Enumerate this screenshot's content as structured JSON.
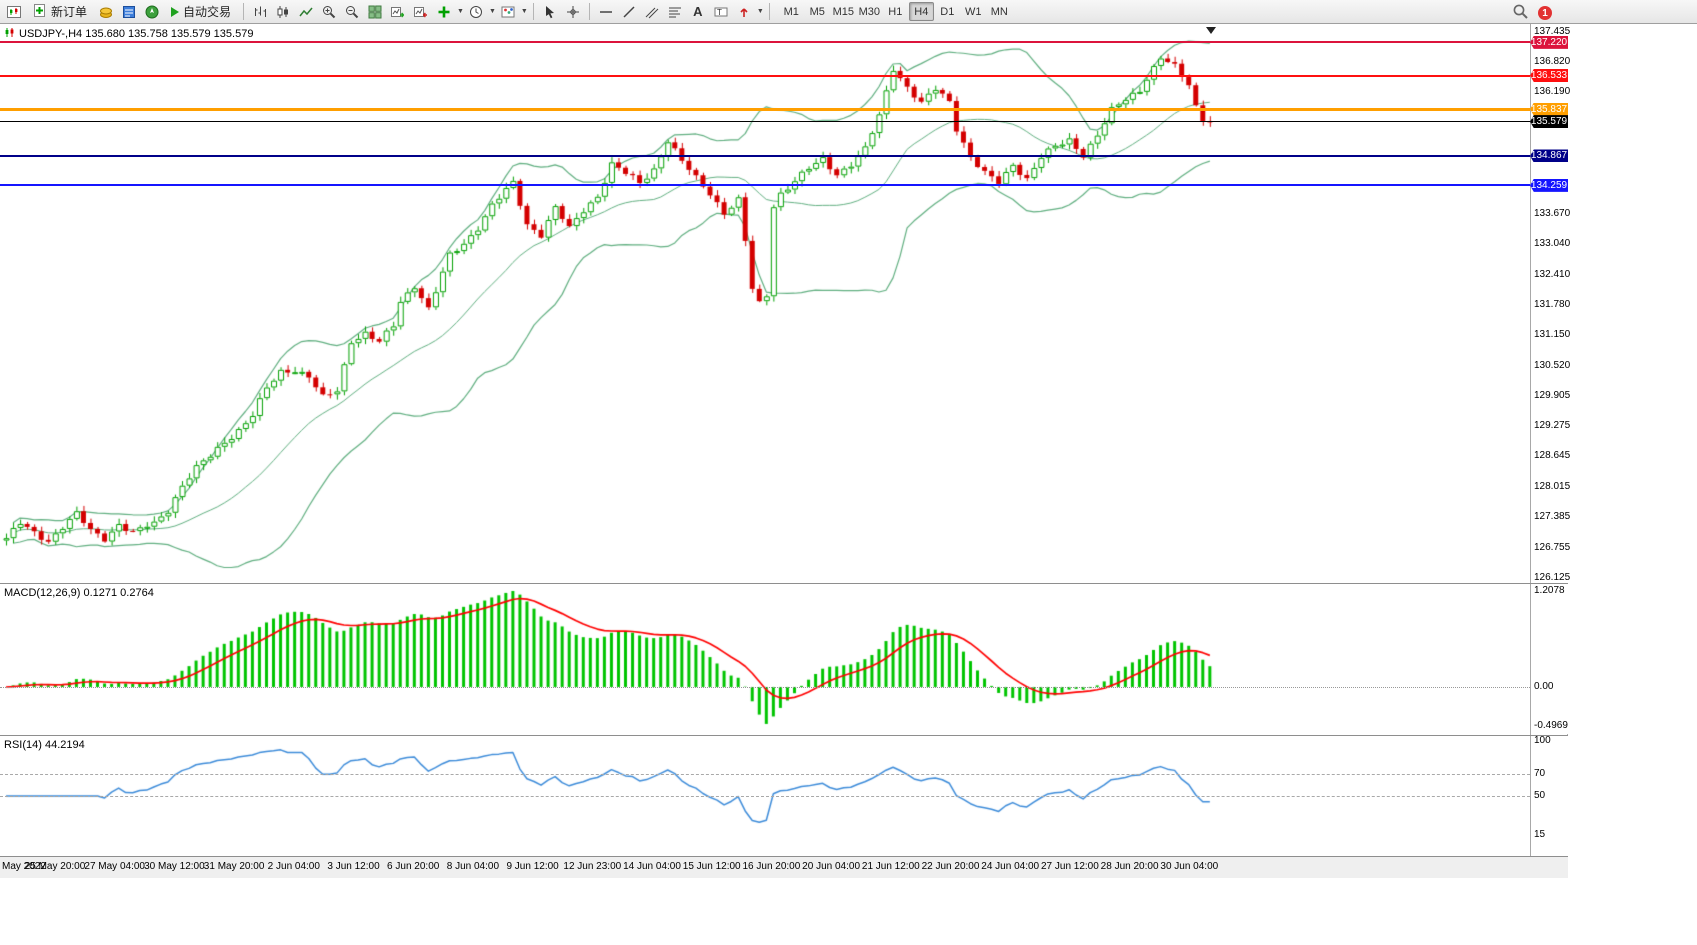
{
  "toolbar": {
    "new_order_label": "新订单",
    "auto_trading_label": "自动交易",
    "timeframes": [
      "M1",
      "M5",
      "M15",
      "M30",
      "H1",
      "H4",
      "D1",
      "W1",
      "MN"
    ],
    "active_timeframe": "H4",
    "notification_count": "1"
  },
  "chart": {
    "info_line": "USDJPY-,H4 135.680 135.758 135.579 135.579",
    "symbol": "USDJPY-",
    "period": "H4",
    "open": "135.680",
    "high": "135.758",
    "low": "135.579",
    "close": "135.579",
    "price_axis": {
      "ticks": [
        {
          "label": "137.435",
          "price": 137.435
        },
        {
          "label": "136.820",
          "price": 136.82
        },
        {
          "label": "136.190",
          "price": 136.19
        },
        {
          "label": "133.670",
          "price": 133.67
        },
        {
          "label": "133.040",
          "price": 133.04
        },
        {
          "label": "132.410",
          "price": 132.41
        },
        {
          "label": "131.780",
          "price": 131.78
        },
        {
          "label": "131.150",
          "price": 131.15
        },
        {
          "label": "130.520",
          "price": 130.52
        },
        {
          "label": "129.905",
          "price": 129.905
        },
        {
          "label": "129.275",
          "price": 129.275
        },
        {
          "label": "128.645",
          "price": 128.645
        },
        {
          "label": "128.015",
          "price": 128.015
        },
        {
          "label": "127.385",
          "price": 127.385
        },
        {
          "label": "126.755",
          "price": 126.755
        },
        {
          "label": "126.125",
          "price": 126.125
        }
      ]
    },
    "levels": [
      {
        "label": "137.220",
        "price": 137.22,
        "color": "#dc143c",
        "thickness": 2
      },
      {
        "label": "136.533",
        "price": 136.533,
        "color": "#ff1010",
        "thickness": 2
      },
      {
        "label": "135.837",
        "price": 135.837,
        "color": "#ff9f00",
        "thickness": 3
      },
      {
        "label": "135.579",
        "price": 135.579,
        "color": "#000000",
        "thickness": 1,
        "current": true
      },
      {
        "label": "134.867",
        "price": 134.867,
        "color": "#000089",
        "thickness": 2
      },
      {
        "label": "134.259",
        "price": 134.259,
        "color": "#1515ff",
        "thickness": 2
      }
    ]
  },
  "macd_panel": {
    "label": "MACD(12,26,9) 0.1271 0.2764",
    "ticks": [
      {
        "label": "1.2078",
        "value": 1.2078
      },
      {
        "label": "0.00",
        "value": 0
      },
      {
        "label": "-0.4969",
        "value": -0.4969
      }
    ]
  },
  "rsi_panel": {
    "label": "RSI(14) 44.2194",
    "ticks": [
      {
        "label": "100",
        "value": 100
      },
      {
        "label": "70",
        "value": 70
      },
      {
        "label": "50",
        "value": 50
      },
      {
        "label": "15",
        "value": 15
      }
    ],
    "level_lines": [
      70,
      50
    ]
  },
  "time_axis": [
    "May 2022",
    "25 May 20:00",
    "27 May 04:00",
    "30 May 12:00",
    "31 May 20:00",
    "2 Jun 04:00",
    "3 Jun 12:00",
    "6 Jun 20:00",
    "8 Jun 04:00",
    "9 Jun 12:00",
    "12 Jun 23:00",
    "14 Jun 04:00",
    "15 Jun 12:00",
    "16 Jun 20:00",
    "20 Jun 04:00",
    "21 Jun 12:00",
    "22 Jun 20:00",
    "24 Jun 04:00",
    "27 Jun 12:00",
    "28 Jun 20:00",
    "30 Jun 04:00"
  ],
  "chart_data": {
    "type": "candlestick",
    "symbol": "USDJPY",
    "timeframe": "H4",
    "price_range": {
      "min": 126.125,
      "max": 137.435
    },
    "candle_count": 172,
    "close_anchors": [
      [
        0,
        126.95
      ],
      [
        2,
        127.25
      ],
      [
        4,
        127.05
      ],
      [
        6,
        126.9
      ],
      [
        8,
        127.2
      ],
      [
        10,
        127.45
      ],
      [
        12,
        127.1
      ],
      [
        14,
        126.95
      ],
      [
        16,
        127.25
      ],
      [
        18,
        127.05
      ],
      [
        20,
        127.2
      ],
      [
        21,
        127.25
      ],
      [
        23,
        127.55
      ],
      [
        25,
        128.05
      ],
      [
        27,
        128.4
      ],
      [
        29,
        128.65
      ],
      [
        31,
        128.95
      ],
      [
        33,
        129.2
      ],
      [
        35,
        129.5
      ],
      [
        37,
        130.05
      ],
      [
        39,
        130.4
      ],
      [
        41,
        130.45
      ],
      [
        43,
        130.3
      ],
      [
        45,
        129.85
      ],
      [
        47,
        130.0
      ],
      [
        49,
        131.05
      ],
      [
        51,
        131.2
      ],
      [
        53,
        131.0
      ],
      [
        55,
        131.35
      ],
      [
        56,
        131.85
      ],
      [
        58,
        132.2
      ],
      [
        60,
        131.7
      ],
      [
        63,
        132.8
      ],
      [
        65,
        133.05
      ],
      [
        67,
        133.4
      ],
      [
        69,
        133.85
      ],
      [
        71,
        134.15
      ],
      [
        72,
        134.3
      ],
      [
        74,
        133.45
      ],
      [
        76,
        133.25
      ],
      [
        78,
        133.8
      ],
      [
        80,
        133.35
      ],
      [
        82,
        133.75
      ],
      [
        84,
        134.05
      ],
      [
        86,
        134.7
      ],
      [
        88,
        134.5
      ],
      [
        90,
        134.3
      ],
      [
        92,
        134.6
      ],
      [
        94,
        135.2
      ],
      [
        96,
        134.75
      ],
      [
        98,
        134.4
      ],
      [
        100,
        134.1
      ],
      [
        102,
        133.7
      ],
      [
        104,
        133.95
      ],
      [
        105,
        133.1
      ],
      [
        106,
        132.1
      ],
      [
        107,
        131.8
      ],
      [
        108,
        132.0
      ],
      [
        109,
        133.85
      ],
      [
        110,
        134.1
      ],
      [
        112,
        134.35
      ],
      [
        114,
        134.6
      ],
      [
        116,
        134.8
      ],
      [
        118,
        134.5
      ],
      [
        120,
        134.7
      ],
      [
        122,
        135.0
      ],
      [
        124,
        135.7
      ],
      [
        126,
        136.7
      ],
      [
        128,
        136.3
      ],
      [
        130,
        135.95
      ],
      [
        132,
        136.25
      ],
      [
        134,
        136.0
      ],
      [
        135,
        135.45
      ],
      [
        137,
        134.85
      ],
      [
        139,
        134.5
      ],
      [
        141,
        134.3
      ],
      [
        143,
        134.7
      ],
      [
        145,
        134.4
      ],
      [
        147,
        134.85
      ],
      [
        149,
        135.05
      ],
      [
        151,
        135.2
      ],
      [
        153,
        134.9
      ],
      [
        155,
        135.3
      ],
      [
        157,
        135.8
      ],
      [
        159,
        136.05
      ],
      [
        161,
        136.25
      ],
      [
        162,
        136.5
      ],
      [
        164,
        136.9
      ],
      [
        166,
        136.7
      ],
      [
        168,
        136.35
      ],
      [
        169,
        135.9
      ],
      [
        170,
        135.65
      ],
      [
        171,
        135.579
      ]
    ],
    "indicators": {
      "bollinger": {
        "period": 20,
        "deviation": 2
      },
      "macd": {
        "fast": 12,
        "slow": 26,
        "signal": 9,
        "last_main": 0.1271,
        "last_signal": 0.2764,
        "scale_max": 1.2078,
        "scale_min": -0.4969
      },
      "rsi": {
        "period": 14,
        "last": 44.2194,
        "scale": [
          0,
          100
        ]
      }
    },
    "colors": {
      "bull": "#00a000",
      "bear": "#d40000",
      "bollinger": "#5fae7f",
      "macd_hist": "#00c400",
      "macd_signal": "#ff0000",
      "rsi": "#3c8bd9"
    }
  }
}
